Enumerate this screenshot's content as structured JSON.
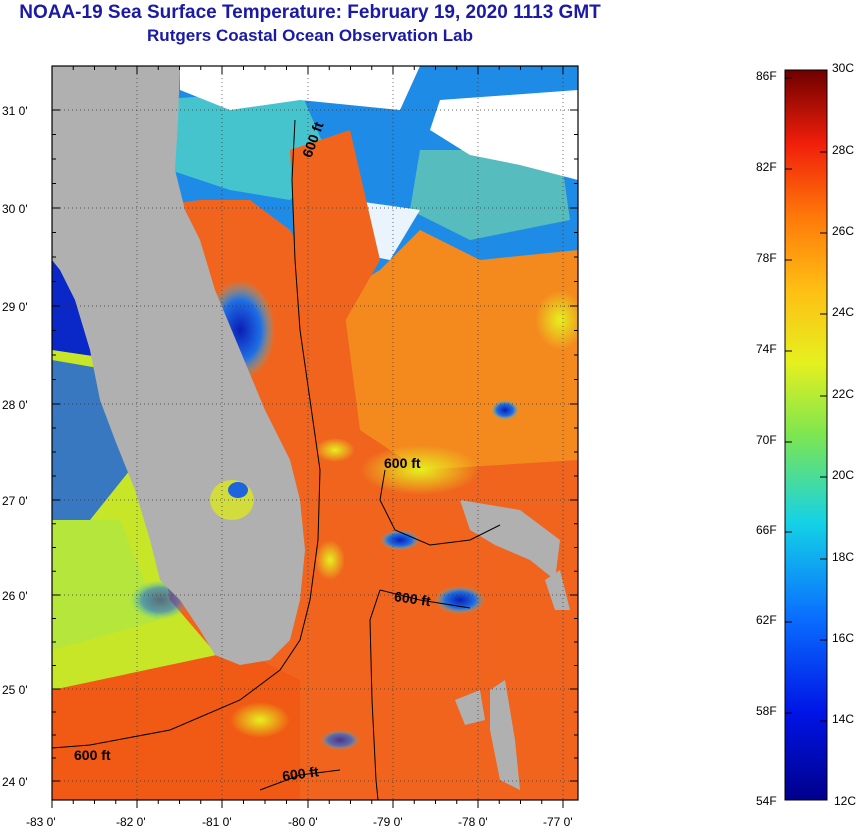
{
  "title": {
    "line1": "NOAA-19 Sea Surface Temperature:  February 19, 2020 1113 GMT",
    "line2": "Rutgers Coastal Ocean Observation Lab"
  },
  "map": {
    "lat_labels": [
      "31 0'",
      "30 0'",
      "29 0'",
      "28 0'",
      "27 0'",
      "26 0'",
      "25 0'",
      "24 0'"
    ],
    "lon_labels": [
      "-83 0'",
      "-82 0'",
      "-81 0'",
      "-80 0'",
      "-79 0'",
      "-78 0'",
      "-77 0'"
    ],
    "contour_labels": [
      "600 ft",
      "600 ft",
      "600 ft",
      "600 ft",
      "600 ft"
    ]
  },
  "colorbar": {
    "fahrenheit": [
      "86F",
      "82F",
      "78F",
      "74F",
      "70F",
      "66F",
      "62F",
      "58F",
      "54F"
    ],
    "celsius": [
      "30C",
      "28C",
      "26C",
      "24C",
      "22C",
      "20C",
      "18C",
      "16C",
      "14C",
      "12C"
    ]
  },
  "colors": {
    "title": "#1a1aa6",
    "land": "#b0b0b0",
    "cloud": "#ffffff",
    "warm": "#f05a14",
    "cold": "#0a14b4"
  }
}
